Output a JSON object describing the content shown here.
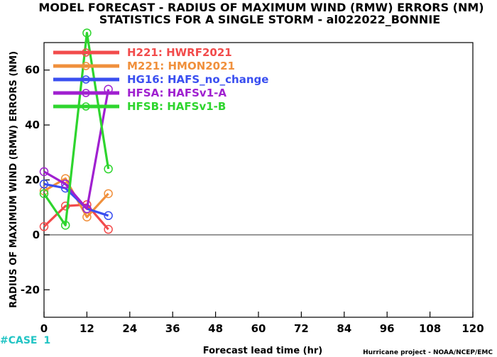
{
  "chart_data": {
    "type": "line",
    "title": "MODEL FORECAST - RADIUS OF MAXIMUM WIND (RMW) ERRORS (NM)",
    "subtitle": "STATISTICS FOR A SINGLE STORM - al022022_BONNIE",
    "xlabel": "Forecast lead time (hr)",
    "ylabel": "RADIUS OF MAXIMUM WIND (RMW) ERRORS (NM)",
    "xlim": [
      0,
      120
    ],
    "ylim": [
      -30,
      70
    ],
    "xticks": [
      "0",
      "12",
      "24",
      "36",
      "48",
      "60",
      "72",
      "84",
      "96",
      "108",
      "120"
    ],
    "xtick_values": [
      0,
      12,
      24,
      36,
      48,
      60,
      72,
      84,
      96,
      108,
      120
    ],
    "yticks": [
      "-20",
      "0",
      "20",
      "40",
      "60"
    ],
    "ytick_values": [
      -20,
      0,
      20,
      40,
      60
    ],
    "zero_line": true,
    "legend_position": "top-left",
    "case_label": "#CASE",
    "case_count": "1",
    "credit": "Hurricane project - NOAA/NCEP/EMC",
    "series": [
      {
        "name": "H221:  HWRF2021",
        "color": "#f24b4b",
        "x": [
          0,
          6,
          12,
          18
        ],
        "values": [
          3,
          10.5,
          11,
          2
        ]
      },
      {
        "name": "M221:  HMON2021",
        "color": "#f0903c",
        "x": [
          0,
          6,
          12,
          18
        ],
        "values": [
          16,
          20.5,
          6.5,
          15
        ]
      },
      {
        "name": "HG16:  HAFS_no_change",
        "color": "#3a4ff0",
        "x": [
          0,
          6,
          12,
          18
        ],
        "values": [
          18.5,
          17,
          9.5,
          7
        ]
      },
      {
        "name": "HFSA:  HAFSv1-A",
        "color": "#a020d0",
        "x": [
          0,
          6,
          12,
          18
        ],
        "values": [
          23,
          18.5,
          9.5,
          53
        ]
      },
      {
        "name": "HFSB:  HAFSv1-B",
        "color": "#2ed52e",
        "x": [
          0,
          6,
          12,
          18
        ],
        "values": [
          15,
          3.5,
          73.5,
          24
        ]
      }
    ]
  }
}
